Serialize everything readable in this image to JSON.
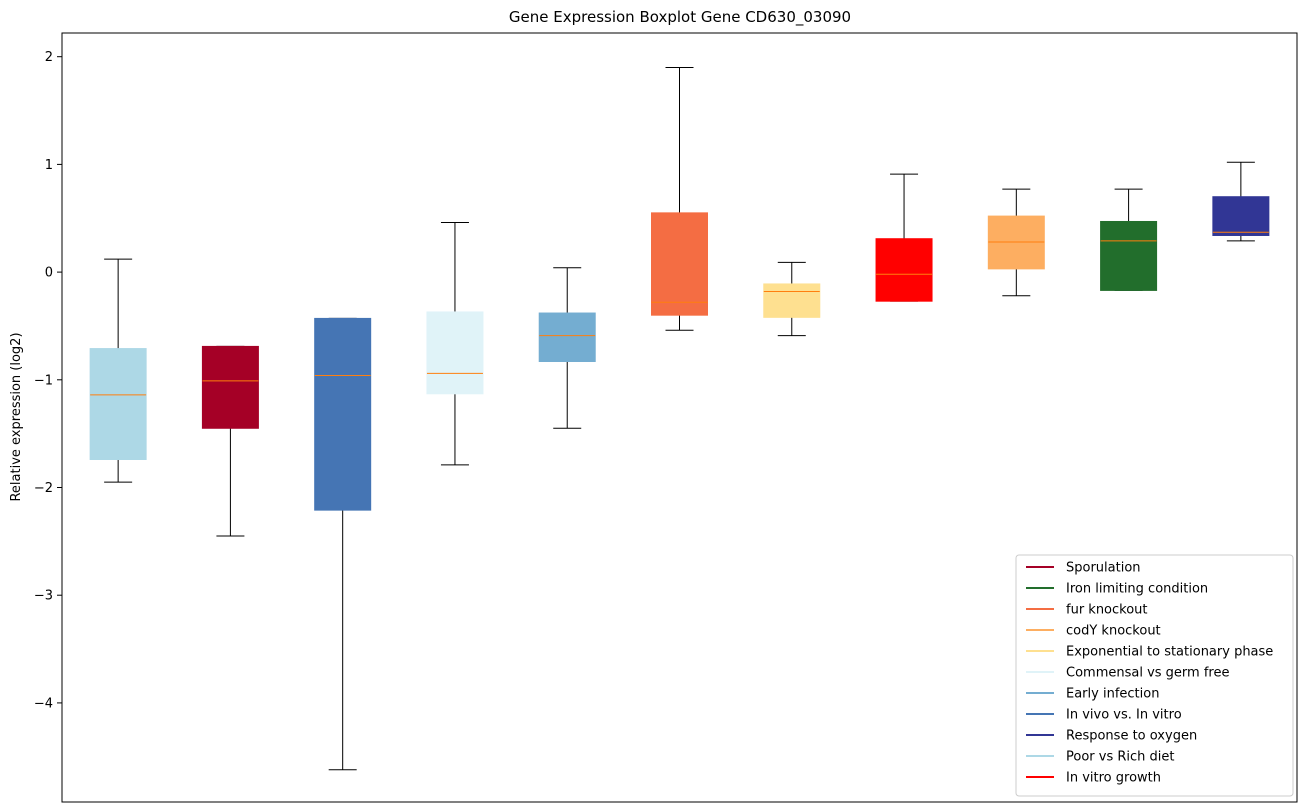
{
  "chart_data": {
    "type": "boxplot",
    "title": "Gene Expression Boxplot Gene CD630_03090",
    "xlabel": "",
    "ylabel": "Relative expression (log2)",
    "ylim": [
      -4.92,
      2.22
    ],
    "yticks": [
      2,
      1,
      0,
      -1,
      -2,
      -3,
      -4
    ],
    "ytick_labels": [
      "2",
      "1",
      "0",
      "−1",
      "−2",
      "−3",
      "−4"
    ],
    "median_color": "#ff7f0e",
    "series": [
      {
        "name": "Poor vs Rich diet",
        "color": "#add8e6",
        "whisker_low": -1.95,
        "q1": -1.74,
        "median": -1.14,
        "q3": -0.71,
        "whisker_high": 0.12
      },
      {
        "name": "Sporulation",
        "color": "#a50026",
        "whisker_low": -2.45,
        "q1": -1.45,
        "median": -1.01,
        "q3": -0.69,
        "whisker_high": -0.69
      },
      {
        "name": "In vivo vs. In vitro",
        "color": "#4575b4",
        "whisker_low": -4.62,
        "q1": -2.21,
        "median": -0.96,
        "q3": -0.43,
        "whisker_high": -0.43
      },
      {
        "name": "Commensal vs germ free",
        "color": "#e0f3f8",
        "whisker_low": -1.79,
        "q1": -1.13,
        "median": -0.94,
        "q3": -0.37,
        "whisker_high": 0.46
      },
      {
        "name": "Early infection",
        "color": "#74add1",
        "whisker_low": -1.45,
        "q1": -0.83,
        "median": -0.59,
        "q3": -0.38,
        "whisker_high": 0.04
      },
      {
        "name": "fur knockout",
        "color": "#f46d43",
        "whisker_low": -0.54,
        "q1": -0.4,
        "median": -0.28,
        "q3": 0.55,
        "whisker_high": 1.9
      },
      {
        "name": "Exponential to stationary phase",
        "color": "#fee090",
        "whisker_low": -0.59,
        "q1": -0.42,
        "median": -0.18,
        "q3": -0.11,
        "whisker_high": 0.09
      },
      {
        "name": "In vitro growth",
        "color": "#ff0000",
        "whisker_low": -0.27,
        "q1": -0.27,
        "median": -0.02,
        "q3": 0.31,
        "whisker_high": 0.91
      },
      {
        "name": "codY knockout",
        "color": "#fdae61",
        "whisker_low": -0.22,
        "q1": 0.03,
        "median": 0.28,
        "q3": 0.52,
        "whisker_high": 0.77
      },
      {
        "name": "Iron limiting condition",
        "color": "#226e2c",
        "whisker_low": -0.17,
        "q1": -0.17,
        "median": 0.29,
        "q3": 0.47,
        "whisker_high": 0.77
      },
      {
        "name": "Response to oxygen",
        "color": "#313695",
        "whisker_low": 0.29,
        "q1": 0.34,
        "median": 0.37,
        "q3": 0.7,
        "whisker_high": 1.02
      }
    ],
    "legend": {
      "position": "bottom-right",
      "entries": [
        {
          "label": "Sporulation",
          "color": "#a50026"
        },
        {
          "label": "Iron limiting condition",
          "color": "#226e2c"
        },
        {
          "label": "fur knockout",
          "color": "#f46d43"
        },
        {
          "label": "codY knockout",
          "color": "#fdae61"
        },
        {
          "label": "Exponential to stationary phase",
          "color": "#fee090"
        },
        {
          "label": "Commensal vs germ free",
          "color": "#e0f3f8"
        },
        {
          "label": "Early infection",
          "color": "#74add1"
        },
        {
          "label": "In vivo vs. In vitro",
          "color": "#4575b4"
        },
        {
          "label": "Response to oxygen",
          "color": "#313695"
        },
        {
          "label": "Poor vs Rich diet",
          "color": "#add8e6"
        },
        {
          "label": "In vitro growth",
          "color": "#ff0000"
        }
      ]
    }
  }
}
